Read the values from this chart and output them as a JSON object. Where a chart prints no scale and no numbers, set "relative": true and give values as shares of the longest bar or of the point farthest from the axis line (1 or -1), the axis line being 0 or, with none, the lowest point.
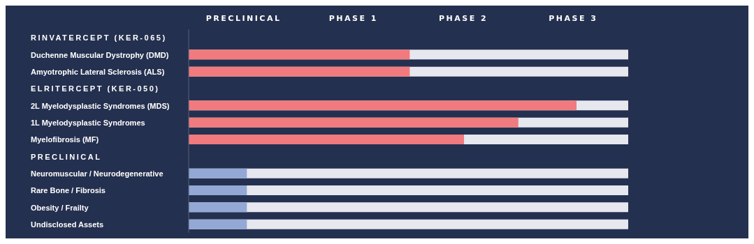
{
  "chart_data": {
    "type": "bar",
    "orientation": "horizontal",
    "relative": true,
    "categories": [
      "RINVATERCEPT (KER-065)",
      "Duchenne Muscular Dystrophy (DMD)",
      "Amyotrophic Lateral Sclerosis (ALS)",
      "ELRITERCEPT (KER-050)",
      "2L Myelodysplastic Syndromes (MDS)",
      "1L Myelodysplastic Syndromes",
      "Myelofibrosis (MF)",
      "PRECLINICAL",
      "Neuromuscular / Neurodegenerative",
      "Rare Bone / Fibrosis",
      "Obesity / Frailty",
      "Undisclosed Assets"
    ],
    "values": [
      null,
      0.57,
      0.57,
      null,
      1,
      0.85,
      0.71,
      null,
      0.15,
      0.15,
      0.15,
      0.15
    ],
    "colors": [
      null,
      "#f07a7e",
      "#f07a7e",
      null,
      "#f07a7e",
      "#f07a7e",
      "#f07a7e",
      null,
      "#93a8d4",
      "#93a8d4",
      "#93a8d4",
      "#93a8d4"
    ],
    "annotations": [
      "PRECLINICAL",
      "PHASE 1",
      "PHASE 2",
      "PHASE 3"
    ]
  }
}
